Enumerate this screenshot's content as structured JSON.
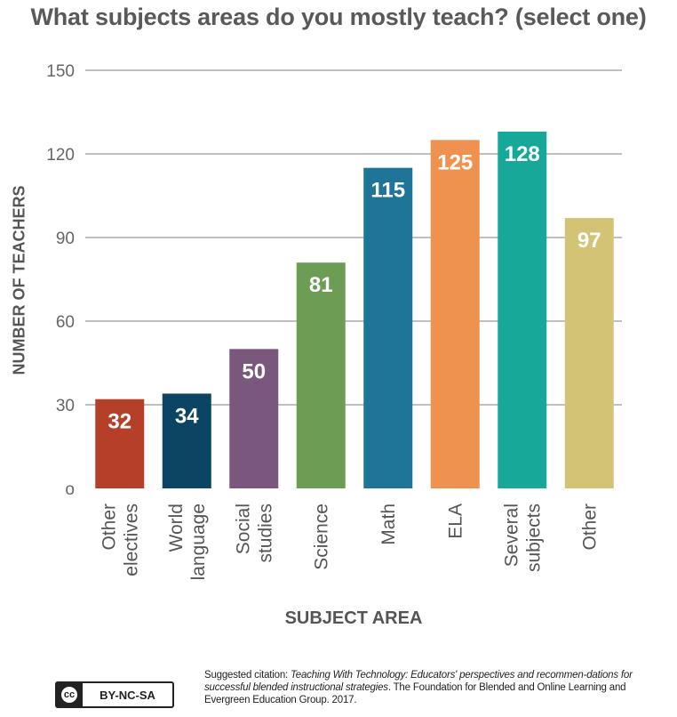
{
  "title": "What subjects areas do you mostly teach? (select one)",
  "chart_data": {
    "type": "bar",
    "ylabel": "NUMBER OF TEACHERS",
    "xlabel": "SUBJECT AREA",
    "ylim": [
      0,
      150
    ],
    "yticks": [
      0,
      30,
      60,
      90,
      120,
      150
    ],
    "ytick_labels": [
      "o",
      "30",
      "60",
      "90",
      "120",
      "150"
    ],
    "grid": true,
    "categories": [
      [
        "Other",
        "electives"
      ],
      [
        "World",
        "language"
      ],
      [
        "Social",
        "studies"
      ],
      [
        "Science"
      ],
      [
        "Math"
      ],
      [
        "ELA"
      ],
      [
        "Several",
        "subjects"
      ],
      [
        "Other"
      ]
    ],
    "values": [
      32,
      34,
      50,
      81,
      115,
      125,
      128,
      97
    ],
    "colors": [
      "#b63f2a",
      "#0c4463",
      "#7a587e",
      "#6d9d55",
      "#1f7597",
      "#ef9250",
      "#17a89a",
      "#d3c475"
    ]
  },
  "license": {
    "cc": "cc",
    "text": "BY-NC-SA"
  },
  "citation": {
    "prefix": "Suggested citation: ",
    "title": "Teaching With Technology: Educators' perspectives and recommen-dations for successful blended instructional strategies",
    "suffix": ". The Foundation for Blended and Online Learning and Evergreen Education Group. 2017."
  }
}
